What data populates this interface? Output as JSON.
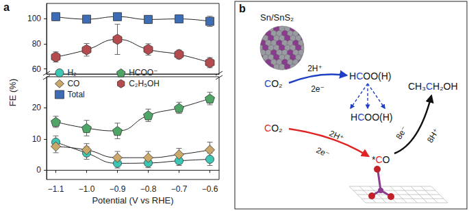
{
  "panel_a_label": "a",
  "chart_data": [
    {
      "type": "line",
      "y_label": "FE (%)",
      "x": [
        -1.1,
        -1.0,
        -0.9,
        -0.8,
        -0.7,
        -0.6
      ],
      "xlim": [
        -1.13,
        -0.57
      ],
      "xticks": [
        {
          "value": -1.1,
          "label": "−1.1"
        },
        {
          "value": -1.0,
          "label": "−1.0"
        },
        {
          "value": -0.9,
          "label": "−0.9"
        },
        {
          "value": -0.8,
          "label": "−0.8"
        },
        {
          "value": -0.7,
          "label": "−0.7"
        },
        {
          "value": -0.6,
          "label": "−0.6"
        }
      ],
      "ylim": [
        56,
        112
      ],
      "yticks": [
        60,
        80,
        100
      ],
      "tick_labels": "y",
      "grid": false,
      "line_style": "smooth",
      "series": [
        {
          "name": "Total",
          "color": "#3d6db5",
          "marker": "square",
          "values": [
            101.5,
            99.5,
            101.5,
            99.3,
            99.7,
            97.8
          ],
          "errors": [
            3,
            3,
            3,
            3,
            3,
            4
          ]
        },
        {
          "name": "C₂H₅OH",
          "color": "#b44b4e",
          "marker": "hexagon",
          "values": [
            69.5,
            75.2,
            83.5,
            75.5,
            71.5,
            65.0
          ],
          "errors": [
            4,
            5,
            12,
            4.5,
            3.5,
            4
          ]
        }
      ]
    },
    {
      "type": "line",
      "x_label": "Potential (V vs RHE)",
      "x": [
        -1.1,
        -1.0,
        -0.9,
        -0.8,
        -0.7,
        -0.6
      ],
      "xlim": [
        -1.13,
        -0.57
      ],
      "xticks": [
        {
          "value": -1.1,
          "label": "−1.1"
        },
        {
          "value": -1.0,
          "label": "−1.0"
        },
        {
          "value": -0.9,
          "label": "−0.9"
        },
        {
          "value": -0.8,
          "label": "−0.8"
        },
        {
          "value": -0.7,
          "label": "−0.7"
        },
        {
          "value": -0.6,
          "label": "−0.6"
        }
      ],
      "ylim": [
        -3,
        30
      ],
      "yticks": [
        0,
        10,
        20
      ],
      "grid": false,
      "legend": "upper left",
      "line_style": "smooth",
      "series": [
        {
          "name": "H₂",
          "color": "#3cc6b4",
          "marker": "circle",
          "values": [
            9.0,
            5.5,
            2.2,
            2.3,
            3.0,
            3.5
          ],
          "errors": [
            2,
            2,
            1.5,
            1.5,
            1.5,
            2
          ]
        },
        {
          "name": "CO",
          "color": "#c9a86a",
          "marker": "diamond",
          "values": [
            7.6,
            6.5,
            4.0,
            4.0,
            5.0,
            6.5
          ],
          "errors": [
            2,
            2,
            2,
            2,
            2,
            2.5
          ]
        },
        {
          "name": "HCOO⁻",
          "color": "#4ea565",
          "marker": "pentagon",
          "values": [
            15.5,
            13.5,
            12.6,
            17.6,
            20.0,
            23.0
          ],
          "errors": [
            1.8,
            2.5,
            2.5,
            2,
            1.8,
            2
          ]
        }
      ]
    }
  ],
  "diagram": {
    "label": "b",
    "catalyst": "Sn/SnS₂",
    "molecules": {
      "co2_to_formate": "CO₂",
      "formate": "HCOO(H)",
      "formate_adsorbed": "HCOO(H)",
      "co2_to_co": "CO₂",
      "co": "*CO",
      "ethanol": "CH₃CH₂OH"
    },
    "arrows": {
      "co2_to_formate": [
        "2H⁺",
        "2e⁻"
      ],
      "co2_to_co": [
        "2H⁺",
        "2e⁻"
      ],
      "co_to_ethanol": [
        "8e⁻",
        "8H⁺"
      ]
    }
  }
}
